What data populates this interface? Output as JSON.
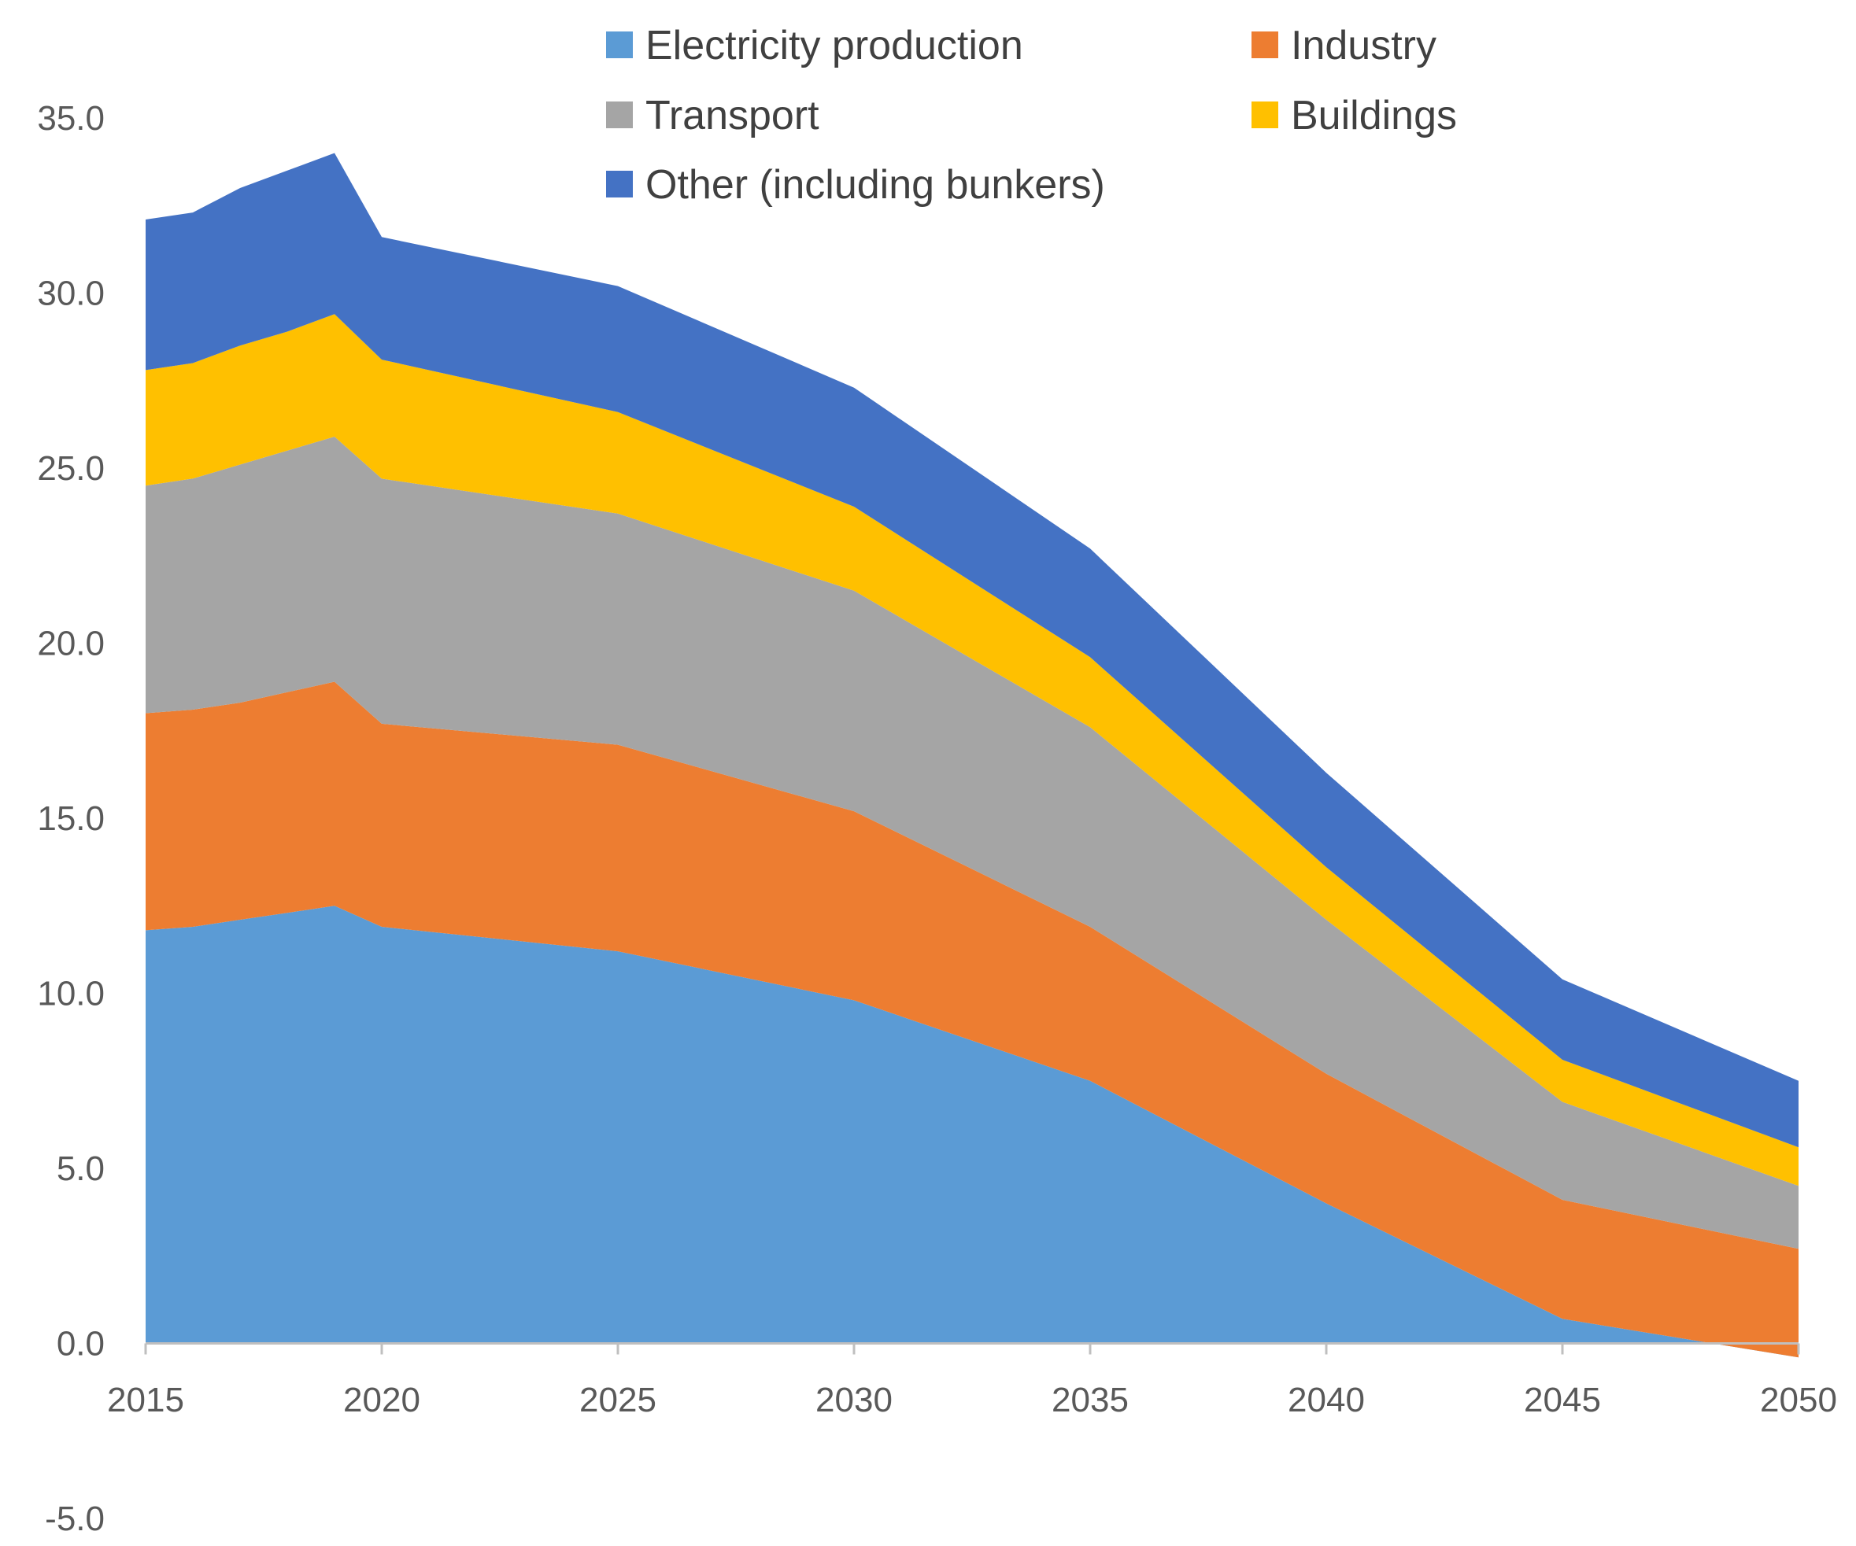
{
  "chart_data": {
    "type": "area",
    "stacked": true,
    "title": "",
    "xlabel": "",
    "ylabel": "",
    "x": [
      2015,
      2016,
      2017,
      2018,
      2019,
      2020,
      2025,
      2030,
      2035,
      2040,
      2045,
      2050
    ],
    "x_ticks": [
      "2015",
      "2020",
      "2025",
      "2030",
      "2035",
      "2040",
      "2045",
      "2050"
    ],
    "y_ticks": [
      "35.0",
      "30.0",
      "25.0",
      "20.0",
      "15.0",
      "10.0",
      "5.0",
      "0.0",
      "-5.0"
    ],
    "ylim": [
      -5,
      35
    ],
    "grid": false,
    "legend_position": "top",
    "series": [
      {
        "name": "Electricity production",
        "color": "#5b9bd5",
        "values": [
          11.8,
          11.9,
          12.1,
          12.3,
          12.5,
          11.9,
          11.2,
          9.8,
          7.5,
          4.0,
          0.7,
          -0.4
        ]
      },
      {
        "name": "Industry",
        "color": "#ed7d31",
        "values": [
          6.2,
          6.2,
          6.2,
          6.3,
          6.4,
          5.8,
          5.9,
          5.4,
          4.4,
          3.7,
          3.4,
          3.1
        ]
      },
      {
        "name": "Transport",
        "color": "#a5a5a5",
        "values": [
          6.5,
          6.6,
          6.8,
          6.9,
          7.0,
          7.0,
          6.6,
          6.3,
          5.7,
          4.4,
          2.8,
          1.8
        ]
      },
      {
        "name": "Buildings",
        "color": "#ffc000",
        "values": [
          3.3,
          3.3,
          3.4,
          3.4,
          3.5,
          3.4,
          2.9,
          2.4,
          2.0,
          1.5,
          1.2,
          1.1
        ]
      },
      {
        "name": "Other (including bunkers)",
        "color": "#4472c4",
        "values": [
          4.3,
          4.3,
          4.5,
          4.6,
          4.6,
          3.5,
          3.6,
          3.4,
          3.1,
          2.7,
          2.3,
          1.9
        ]
      }
    ]
  }
}
